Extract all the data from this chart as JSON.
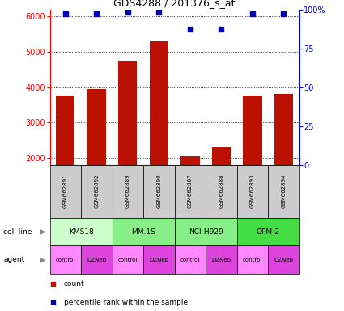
{
  "title": "GDS4288 / 201376_s_at",
  "samples": [
    "GSM662891",
    "GSM662892",
    "GSM662889",
    "GSM662890",
    "GSM662887",
    "GSM662888",
    "GSM662893",
    "GSM662894"
  ],
  "counts": [
    3750,
    3950,
    4750,
    5300,
    2050,
    2300,
    3750,
    3800
  ],
  "percentile_ranks": [
    97,
    97,
    98,
    98,
    87,
    87,
    97,
    97
  ],
  "cell_lines": [
    {
      "label": "KMS18",
      "start": 0,
      "end": 2,
      "color": "#ccffcc"
    },
    {
      "label": "MM.1S",
      "start": 2,
      "end": 4,
      "color": "#88ee88"
    },
    {
      "label": "NCI-H929",
      "start": 4,
      "end": 6,
      "color": "#88ee88"
    },
    {
      "label": "OPM-2",
      "start": 6,
      "end": 8,
      "color": "#44dd44"
    }
  ],
  "agents": [
    "control",
    "DZNep",
    "control",
    "DZNep",
    "control",
    "DZNep",
    "control",
    "DZNep"
  ],
  "agent_colors": {
    "control": "#ff88ff",
    "DZNep": "#dd44dd"
  },
  "bar_color": "#bb1100",
  "scatter_color": "#0000bb",
  "ylim_left": [
    1800,
    6200
  ],
  "ylim_right": [
    0,
    100
  ],
  "yticks_left": [
    2000,
    3000,
    4000,
    5000,
    6000
  ],
  "yticks_right": [
    0,
    25,
    50,
    75,
    100
  ],
  "ytick_labels_right": [
    "0",
    "25",
    "50",
    "75",
    "100%"
  ],
  "sample_bg_color": "#cccccc"
}
